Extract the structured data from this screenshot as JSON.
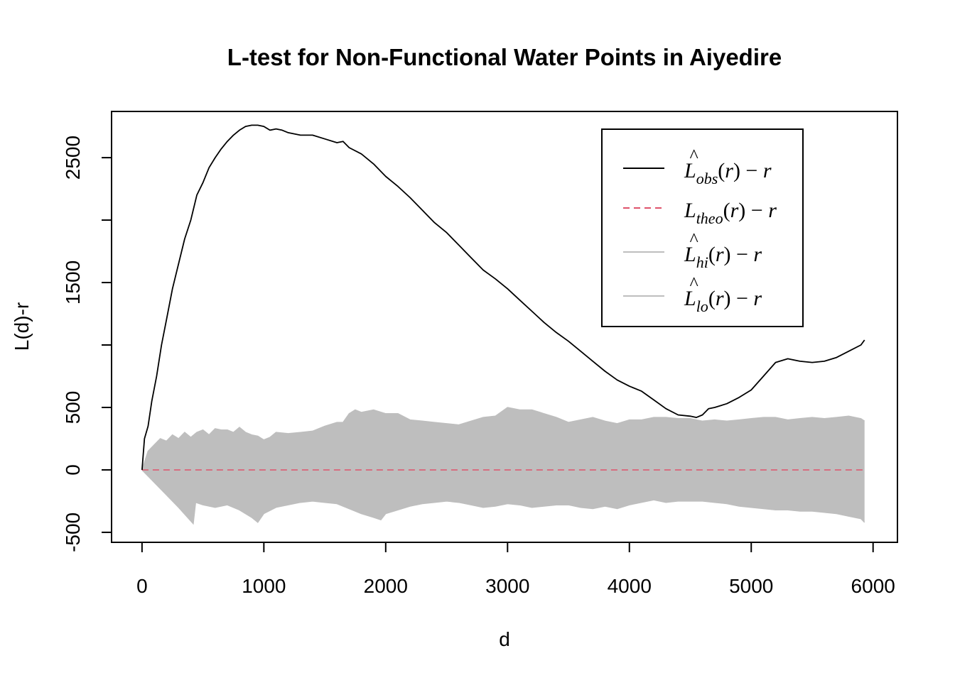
{
  "chart_data": {
    "type": "line",
    "title": "L-test for Non-Functional Water Points in Aiyedire",
    "xlabel": "d",
    "ylabel": "L(d)-r",
    "xlim": [
      -250,
      6200
    ],
    "ylim": [
      -580,
      2870
    ],
    "xticks": [
      0,
      1000,
      2000,
      3000,
      4000,
      5000,
      6000
    ],
    "xtick_labels": [
      "0",
      "1000",
      "2000",
      "3000",
      "4000",
      "5000",
      "6000"
    ],
    "yticks": [
      -500,
      0,
      500,
      1500,
      2500
    ],
    "ytick_labels": [
      "-500",
      "0",
      "500",
      "1500",
      "2500"
    ],
    "grid": false,
    "legend_position": "top-right",
    "legend": [
      {
        "name": "obs",
        "hat": true,
        "sub": "obs",
        "color": "#000000",
        "dash": "solid"
      },
      {
        "name": "theo",
        "hat": false,
        "sub": "theo",
        "color": "#DF536B",
        "dash": "dashed"
      },
      {
        "name": "hi",
        "hat": true,
        "sub": "hi",
        "color": "#BEBEBE",
        "dash": "solid"
      },
      {
        "name": "lo",
        "hat": true,
        "sub": "lo",
        "color": "#BEBEBE",
        "dash": "solid"
      }
    ],
    "series": [
      {
        "name": "obs",
        "color": "#000000",
        "x": [
          0,
          20,
          50,
          80,
          120,
          160,
          200,
          250,
          300,
          350,
          400,
          450,
          500,
          550,
          600,
          650,
          700,
          750,
          800,
          850,
          900,
          950,
          1000,
          1050,
          1100,
          1150,
          1200,
          1300,
          1400,
          1500,
          1600,
          1650,
          1700,
          1800,
          1900,
          2000,
          2100,
          2200,
          2300,
          2400,
          2500,
          2600,
          2700,
          2800,
          2900,
          3000,
          3100,
          3200,
          3300,
          3400,
          3500,
          3600,
          3700,
          3800,
          3900,
          4000,
          4100,
          4200,
          4300,
          4400,
          4500,
          4550,
          4600,
          4650,
          4700,
          4800,
          4900,
          5000,
          5100,
          5200,
          5300,
          5400,
          5500,
          5600,
          5700,
          5800,
          5900,
          5930
        ],
        "y": [
          0,
          250,
          350,
          550,
          750,
          1000,
          1200,
          1450,
          1650,
          1850,
          2000,
          2200,
          2300,
          2420,
          2500,
          2570,
          2630,
          2680,
          2720,
          2750,
          2760,
          2760,
          2750,
          2720,
          2730,
          2720,
          2700,
          2680,
          2680,
          2650,
          2620,
          2630,
          2580,
          2530,
          2450,
          2350,
          2270,
          2180,
          2080,
          1980,
          1900,
          1800,
          1700,
          1600,
          1530,
          1450,
          1360,
          1270,
          1180,
          1100,
          1030,
          950,
          870,
          790,
          720,
          670,
          630,
          560,
          490,
          440,
          430,
          420,
          440,
          490,
          500,
          530,
          580,
          640,
          750,
          860,
          890,
          870,
          860,
          870,
          900,
          950,
          1000,
          1040
        ]
      },
      {
        "name": "theo",
        "color": "#DF536B",
        "x": [
          0,
          5930
        ],
        "y": [
          0,
          0
        ]
      },
      {
        "name": "hi",
        "color": "#BEBEBE",
        "x": [
          0,
          50,
          100,
          150,
          200,
          250,
          300,
          350,
          400,
          450,
          500,
          550,
          600,
          650,
          700,
          750,
          800,
          850,
          900,
          950,
          1000,
          1050,
          1100,
          1200,
          1300,
          1400,
          1500,
          1600,
          1650,
          1700,
          1750,
          1800,
          1900,
          2000,
          2100,
          2200,
          2300,
          2400,
          2500,
          2600,
          2700,
          2800,
          2900,
          3000,
          3100,
          3200,
          3300,
          3400,
          3500,
          3600,
          3700,
          3800,
          3900,
          4000,
          4100,
          4200,
          4300,
          4400,
          4500,
          4600,
          4700,
          4800,
          4900,
          5000,
          5100,
          5200,
          5300,
          5400,
          5500,
          5600,
          5700,
          5800,
          5900,
          5930
        ],
        "y": [
          0,
          150,
          200,
          250,
          230,
          280,
          250,
          300,
          260,
          300,
          320,
          280,
          330,
          320,
          320,
          300,
          340,
          300,
          280,
          270,
          240,
          260,
          300,
          290,
          300,
          310,
          350,
          380,
          380,
          450,
          480,
          460,
          480,
          450,
          450,
          400,
          390,
          380,
          370,
          360,
          390,
          420,
          430,
          500,
          480,
          480,
          450,
          420,
          380,
          400,
          420,
          390,
          370,
          400,
          400,
          420,
          420,
          410,
          410,
          390,
          400,
          390,
          400,
          410,
          420,
          420,
          400,
          410,
          420,
          410,
          420,
          430,
          410,
          390
        ]
      },
      {
        "name": "lo",
        "color": "#BEBEBE",
        "x": [
          0,
          100,
          200,
          300,
          420,
          440,
          500,
          600,
          700,
          800,
          900,
          950,
          1000,
          1100,
          1200,
          1300,
          1400,
          1500,
          1600,
          1700,
          1800,
          1900,
          1960,
          2000,
          2100,
          2200,
          2300,
          2400,
          2500,
          2600,
          2700,
          2800,
          2900,
          3000,
          3100,
          3200,
          3300,
          3400,
          3500,
          3600,
          3700,
          3800,
          3900,
          4000,
          4100,
          4200,
          4300,
          4400,
          4500,
          4600,
          4700,
          4800,
          4900,
          5000,
          5100,
          5200,
          5300,
          5400,
          5500,
          5600,
          5700,
          5800,
          5900,
          5930
        ],
        "y": [
          0,
          -100,
          -200,
          -300,
          -430,
          -260,
          -280,
          -300,
          -280,
          -320,
          -380,
          -420,
          -350,
          -300,
          -280,
          -260,
          -250,
          -260,
          -270,
          -310,
          -350,
          -380,
          -400,
          -350,
          -320,
          -290,
          -270,
          -260,
          -250,
          -260,
          -280,
          -300,
          -290,
          -270,
          -280,
          -300,
          -290,
          -280,
          -280,
          -300,
          -310,
          -290,
          -310,
          -280,
          -260,
          -240,
          -260,
          -250,
          -250,
          -250,
          -260,
          -270,
          -290,
          -300,
          -310,
          -320,
          -320,
          -330,
          -330,
          -340,
          -350,
          -370,
          -390,
          -420
        ]
      }
    ]
  }
}
